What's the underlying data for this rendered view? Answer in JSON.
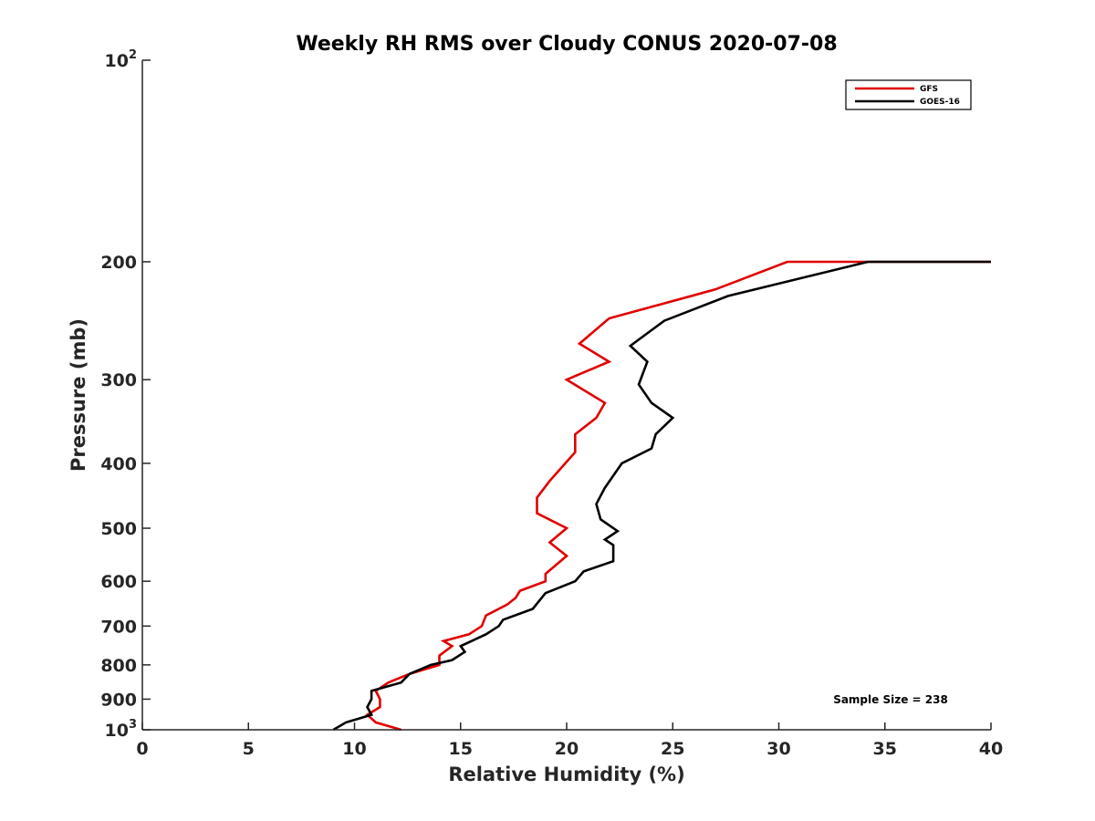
{
  "chart_data": {
    "type": "line",
    "title": "Weekly RH RMS over Cloudy CONUS 2020-07-08",
    "xlabel": "Relative Humidity (%)",
    "ylabel": "Pressure (mb)",
    "xlim": [
      0,
      40
    ],
    "ylim": [
      100,
      1000
    ],
    "y_scale": "log",
    "y_inverted": true,
    "grid": false,
    "legend_position": "top-right",
    "x_ticks": [
      "0",
      "5",
      "10",
      "15",
      "20",
      "25",
      "30",
      "35",
      "40"
    ],
    "y_ticks": [
      {
        "value": 100,
        "base": "10",
        "exp": "2"
      },
      {
        "value": 200,
        "label": "200"
      },
      {
        "value": 300,
        "label": "300"
      },
      {
        "value": 400,
        "label": "400"
      },
      {
        "value": 500,
        "label": "500"
      },
      {
        "value": 600,
        "label": "600"
      },
      {
        "value": 700,
        "label": "700"
      },
      {
        "value": 800,
        "label": "800"
      },
      {
        "value": 900,
        "label": "900"
      },
      {
        "value": 1000,
        "base": "10",
        "exp": "3"
      }
    ],
    "annotation": "Sample Size = 238",
    "series": [
      {
        "name": "GFS",
        "color": "#e00000",
        "points": [
          [
            12.2,
            1000
          ],
          [
            11.0,
            975
          ],
          [
            10.6,
            950
          ],
          [
            11.2,
            925
          ],
          [
            11.2,
            900
          ],
          [
            11.0,
            875
          ],
          [
            11.6,
            850
          ],
          [
            12.6,
            825
          ],
          [
            14.0,
            800
          ],
          [
            14.0,
            787
          ],
          [
            14.0,
            775
          ],
          [
            14.6,
            750
          ],
          [
            14.2,
            737
          ],
          [
            15.4,
            720
          ],
          [
            16.0,
            700
          ],
          [
            16.2,
            675
          ],
          [
            17.2,
            650
          ],
          [
            17.6,
            635
          ],
          [
            17.8,
            620
          ],
          [
            19.0,
            600
          ],
          [
            19.0,
            585
          ],
          [
            20.0,
            550
          ],
          [
            19.2,
            525
          ],
          [
            20.0,
            500
          ],
          [
            18.6,
            475
          ],
          [
            18.6,
            450
          ],
          [
            19.2,
            425
          ],
          [
            20.4,
            385
          ],
          [
            20.4,
            362
          ],
          [
            21.4,
            342
          ],
          [
            21.8,
            325
          ],
          [
            20.0,
            300
          ],
          [
            22.0,
            282
          ],
          [
            20.6,
            265
          ],
          [
            22.0,
            243
          ],
          [
            27.0,
            220
          ],
          [
            30.4,
            200
          ],
          [
            40.0,
            200
          ]
        ]
      },
      {
        "name": "GOES-16",
        "color": "#000000",
        "points": [
          [
            9.0,
            1000
          ],
          [
            9.6,
            975
          ],
          [
            10.8,
            950
          ],
          [
            10.6,
            925
          ],
          [
            10.8,
            900
          ],
          [
            10.8,
            875
          ],
          [
            12.2,
            850
          ],
          [
            12.6,
            825
          ],
          [
            13.6,
            800
          ],
          [
            14.6,
            787
          ],
          [
            15.2,
            765
          ],
          [
            15.0,
            750
          ],
          [
            16.2,
            720
          ],
          [
            16.8,
            700
          ],
          [
            17.0,
            685
          ],
          [
            18.4,
            660
          ],
          [
            19.0,
            625
          ],
          [
            20.4,
            600
          ],
          [
            20.8,
            580
          ],
          [
            22.2,
            560
          ],
          [
            22.2,
            530
          ],
          [
            21.8,
            520
          ],
          [
            22.4,
            505
          ],
          [
            21.6,
            485
          ],
          [
            21.4,
            460
          ],
          [
            21.8,
            435
          ],
          [
            22.6,
            400
          ],
          [
            24.0,
            380
          ],
          [
            24.2,
            362
          ],
          [
            25.0,
            342
          ],
          [
            24.0,
            325
          ],
          [
            23.4,
            305
          ],
          [
            23.8,
            282
          ],
          [
            23.0,
            267
          ],
          [
            24.6,
            245
          ],
          [
            27.6,
            225
          ],
          [
            34.2,
            200
          ],
          [
            40.0,
            200
          ]
        ]
      }
    ]
  }
}
